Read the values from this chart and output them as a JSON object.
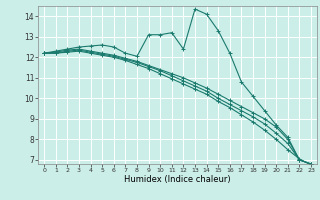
{
  "xlabel": "Humidex (Indice chaleur)",
  "background_color": "#cceee8",
  "grid_color": "#ffffff",
  "line_color": "#1a7a6e",
  "xlim": [
    -0.5,
    23.5
  ],
  "ylim": [
    6.8,
    14.5
  ],
  "yticks": [
    7,
    8,
    9,
    10,
    11,
    12,
    13,
    14
  ],
  "xticks": [
    0,
    1,
    2,
    3,
    4,
    5,
    6,
    7,
    8,
    9,
    10,
    11,
    12,
    13,
    14,
    15,
    16,
    17,
    18,
    19,
    20,
    21,
    22,
    23
  ],
  "series": [
    {
      "x": [
        0,
        1,
        2,
        3,
        4,
        5,
        6,
        7,
        8,
        9,
        10,
        11,
        12,
        13,
        14,
        15,
        16,
        17,
        18,
        19,
        20,
        21,
        22,
        23
      ],
      "y": [
        12.2,
        12.3,
        12.4,
        12.5,
        12.55,
        12.6,
        12.5,
        12.2,
        12.05,
        13.1,
        13.1,
        13.2,
        12.4,
        14.35,
        14.1,
        13.3,
        12.2,
        10.8,
        10.1,
        9.4,
        8.7,
        8.1,
        7.0,
        6.8
      ]
    },
    {
      "x": [
        0,
        1,
        2,
        3,
        4,
        5,
        6,
        7,
        8,
        9,
        10,
        11,
        12,
        13,
        14,
        15,
        16,
        17,
        18,
        19,
        20,
        21,
        22,
        23
      ],
      "y": [
        12.2,
        12.25,
        12.35,
        12.4,
        12.3,
        12.2,
        12.1,
        11.95,
        11.8,
        11.6,
        11.4,
        11.2,
        11.0,
        10.75,
        10.5,
        10.2,
        9.9,
        9.6,
        9.3,
        9.0,
        8.6,
        8.0,
        7.0,
        6.8
      ]
    },
    {
      "x": [
        0,
        1,
        2,
        3,
        4,
        5,
        6,
        7,
        8,
        9,
        10,
        11,
        12,
        13,
        14,
        15,
        16,
        17,
        18,
        19,
        20,
        21,
        22,
        23
      ],
      "y": [
        12.2,
        12.2,
        12.3,
        12.35,
        12.25,
        12.15,
        12.05,
        11.9,
        11.75,
        11.55,
        11.35,
        11.1,
        10.85,
        10.6,
        10.35,
        10.0,
        9.7,
        9.4,
        9.1,
        8.75,
        8.3,
        7.8,
        7.0,
        6.8
      ]
    },
    {
      "x": [
        0,
        1,
        2,
        3,
        4,
        5,
        6,
        7,
        8,
        9,
        10,
        11,
        12,
        13,
        14,
        15,
        16,
        17,
        18,
        19,
        20,
        21,
        22,
        23
      ],
      "y": [
        12.2,
        12.2,
        12.25,
        12.3,
        12.2,
        12.1,
        12.0,
        11.85,
        11.65,
        11.45,
        11.2,
        10.95,
        10.7,
        10.45,
        10.2,
        9.85,
        9.55,
        9.2,
        8.85,
        8.45,
        8.0,
        7.5,
        7.05,
        6.75
      ]
    }
  ]
}
